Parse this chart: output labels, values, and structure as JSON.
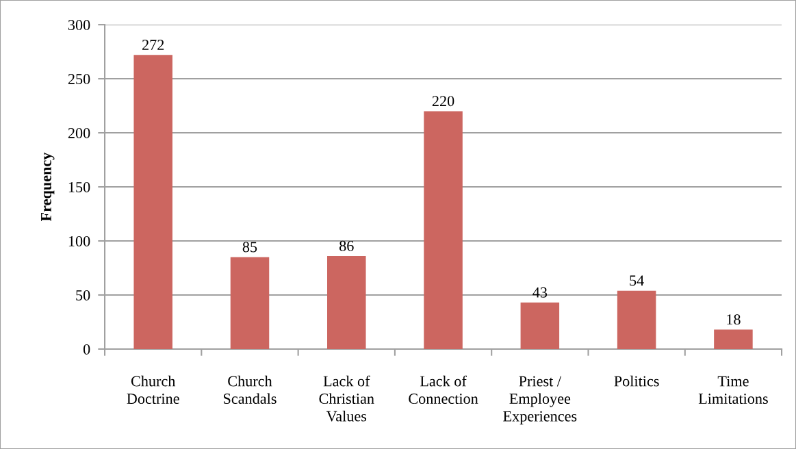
{
  "chart_data": {
    "type": "bar",
    "ylabel": "Frequency",
    "categories": [
      "Church\nDoctrine",
      "Church\nScandals",
      "Lack of\nChristian\nValues",
      "Lack of\nConnection",
      "Priest /\nEmployee\nExperiences",
      "Politics",
      "Time\nLimitations"
    ],
    "values": [
      272,
      85,
      86,
      220,
      43,
      54,
      18
    ],
    "color": "#cc6660",
    "ylim": [
      0,
      300
    ],
    "yticks": [
      0,
      50,
      100,
      150,
      200,
      250,
      300
    ],
    "grid": "y",
    "data_labels": true,
    "legend": false
  }
}
